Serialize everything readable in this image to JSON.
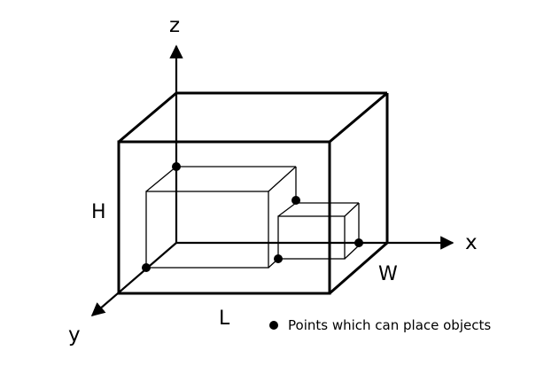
{
  "axes": {
    "x_label": "x",
    "y_label": "y",
    "z_label": "z"
  },
  "dimensions": {
    "height_label": "H",
    "length_label": "L",
    "width_label": "W"
  },
  "legend": {
    "marker_label": "Points which can place objects"
  },
  "colors": {
    "ink": "#000000",
    "background": "#ffffff"
  }
}
